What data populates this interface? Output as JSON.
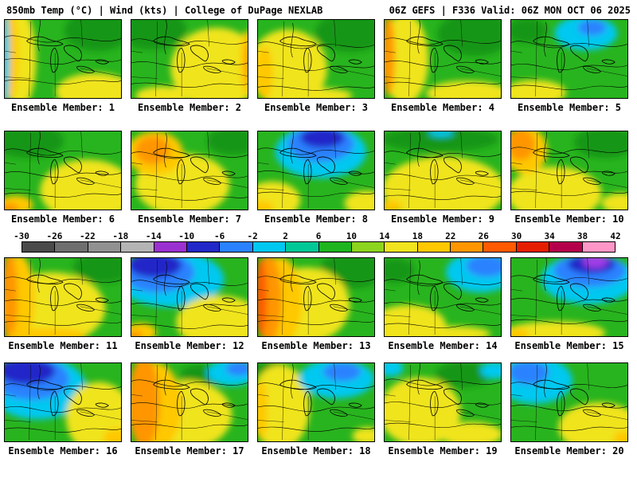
{
  "header": {
    "left": "850mb Temp (°C) | Wind (kts) | College of DuPage NEXLAB",
    "right": "06Z GEFS | F336 Valid: 06Z MON OCT 06 2025"
  },
  "colorbar": {
    "ticks": [
      "-30",
      "-26",
      "-22",
      "-18",
      "-14",
      "-10",
      "-6",
      "-2",
      "2",
      "6",
      "10",
      "14",
      "18",
      "22",
      "26",
      "30",
      "34",
      "38",
      "42"
    ],
    "segment_colors": [
      "#4a4a4a",
      "#6e6e6e",
      "#919191",
      "#b4b4b4",
      "#9b30d0",
      "#2228c8",
      "#2a82ff",
      "#00c8f0",
      "#00c896",
      "#1eb41e",
      "#8cd41e",
      "#f0e41e",
      "#ffc800",
      "#ff9600",
      "#ff5a00",
      "#e61e00",
      "#b4004b",
      "#ff96c8"
    ]
  },
  "palette": {
    "green": "#28b41e",
    "dark_green": "#129612",
    "light_green": "#8cd41e",
    "yellow": "#f0e41e",
    "gold": "#ffc800",
    "orange": "#ff9600",
    "deep_orange": "#ff5a00",
    "red": "#e61e00",
    "cyan": "#00c8f0",
    "teal": "#00c896",
    "blue": "#2a82ff",
    "dark_blue": "#2228c8",
    "purple": "#a03ce6",
    "pink": "#ff96c8"
  },
  "field_base": "green",
  "members": [
    {
      "label": "Ensemble Member: 1",
      "blobs": [
        [
          118,
          14,
          42,
          26,
          "dark_green"
        ],
        [
          115,
          92,
          50,
          24,
          "yellow"
        ],
        [
          20,
          50,
          20,
          62,
          "yellow"
        ],
        [
          8,
          45,
          9,
          58,
          "gold"
        ],
        [
          1,
          50,
          5,
          60,
          "cyan"
        ]
      ]
    },
    {
      "label": "Ensemble Member: 2",
      "blobs": [
        [
          25,
          12,
          45,
          26,
          "dark_green"
        ],
        [
          108,
          62,
          58,
          52,
          "yellow"
        ],
        [
          147,
          55,
          8,
          42,
          "gold"
        ],
        [
          149,
          55,
          4,
          28,
          "orange"
        ],
        [
          40,
          97,
          35,
          12,
          "yellow"
        ]
      ]
    },
    {
      "label": "Ensemble Member: 3",
      "blobs": [
        [
          118,
          16,
          45,
          25,
          "dark_green"
        ],
        [
          38,
          62,
          50,
          50,
          "yellow"
        ],
        [
          8,
          68,
          11,
          34,
          "gold"
        ],
        [
          75,
          97,
          45,
          10,
          "yellow"
        ]
      ]
    },
    {
      "label": "Ensemble Member: 4",
      "blobs": [
        [
          115,
          18,
          48,
          28,
          "dark_green"
        ],
        [
          26,
          50,
          30,
          58,
          "yellow"
        ],
        [
          5,
          45,
          8,
          52,
          "orange"
        ],
        [
          105,
          94,
          52,
          16,
          "yellow"
        ]
      ]
    },
    {
      "label": "Ensemble Member: 5",
      "blobs": [
        [
          20,
          14,
          26,
          16,
          "dark_green"
        ],
        [
          30,
          93,
          40,
          16,
          "yellow"
        ],
        [
          95,
          17,
          40,
          22,
          "cyan"
        ],
        [
          103,
          10,
          18,
          10,
          "blue"
        ]
      ]
    },
    {
      "label": "Ensemble Member: 6",
      "blobs": [
        [
          30,
          12,
          45,
          22,
          "dark_green"
        ],
        [
          105,
          76,
          60,
          40,
          "yellow"
        ],
        [
          14,
          94,
          22,
          12,
          "gold"
        ],
        [
          6,
          99,
          12,
          7,
          "orange"
        ]
      ]
    },
    {
      "label": "Ensemble Member: 7",
      "blobs": [
        [
          130,
          12,
          34,
          18,
          "dark_green"
        ],
        [
          65,
          68,
          60,
          40,
          "yellow"
        ],
        [
          30,
          28,
          36,
          28,
          "gold"
        ],
        [
          27,
          24,
          22,
          18,
          "orange"
        ]
      ]
    },
    {
      "label": "Ensemble Member: 8",
      "blobs": [
        [
          80,
          26,
          58,
          34,
          "cyan"
        ],
        [
          80,
          16,
          42,
          23,
          "blue"
        ],
        [
          82,
          8,
          28,
          13,
          "dark_blue"
        ],
        [
          18,
          88,
          36,
          24,
          "yellow"
        ],
        [
          138,
          92,
          28,
          16,
          "yellow"
        ],
        [
          6,
          98,
          14,
          9,
          "gold"
        ]
      ]
    },
    {
      "label": "Ensemble Member: 9",
      "blobs": [
        [
          70,
          10,
          75,
          16,
          "dark_green"
        ],
        [
          75,
          74,
          78,
          42,
          "yellow"
        ],
        [
          72,
          2,
          16,
          5,
          "cyan"
        ],
        [
          8,
          96,
          14,
          8,
          "gold"
        ]
      ]
    },
    {
      "label": "Ensemble Member: 10",
      "blobs": [
        [
          120,
          14,
          40,
          20,
          "dark_green"
        ],
        [
          55,
          80,
          60,
          35,
          "yellow"
        ],
        [
          18,
          24,
          28,
          30,
          "gold"
        ],
        [
          12,
          17,
          18,
          20,
          "orange"
        ],
        [
          140,
          92,
          25,
          13,
          "yellow"
        ]
      ]
    },
    {
      "label": "Ensemble Member: 11",
      "blobs": [
        [
          125,
          12,
          38,
          20,
          "dark_green"
        ],
        [
          60,
          64,
          68,
          46,
          "yellow"
        ],
        [
          18,
          52,
          20,
          56,
          "gold"
        ],
        [
          6,
          50,
          10,
          58,
          "orange"
        ],
        [
          55,
          99,
          50,
          9,
          "gold"
        ]
      ]
    },
    {
      "label": "Ensemble Member: 12",
      "blobs": [
        [
          50,
          27,
          68,
          36,
          "cyan"
        ],
        [
          34,
          18,
          46,
          26,
          "blue"
        ],
        [
          30,
          9,
          34,
          16,
          "dark_blue"
        ],
        [
          112,
          82,
          55,
          34,
          "yellow"
        ],
        [
          12,
          95,
          20,
          12,
          "gold"
        ],
        [
          4,
          99,
          10,
          6,
          "orange"
        ]
      ]
    },
    {
      "label": "Ensemble Member: 13",
      "blobs": [
        [
          120,
          15,
          42,
          24,
          "dark_green"
        ],
        [
          62,
          60,
          55,
          48,
          "yellow"
        ],
        [
          28,
          55,
          28,
          56,
          "gold"
        ],
        [
          14,
          52,
          16,
          56,
          "orange"
        ],
        [
          4,
          50,
          7,
          50,
          "deep_orange"
        ]
      ]
    },
    {
      "label": "Ensemble Member: 14",
      "blobs": [
        [
          14,
          16,
          24,
          16,
          "dark_green"
        ],
        [
          122,
          18,
          44,
          26,
          "cyan"
        ],
        [
          130,
          10,
          26,
          14,
          "blue"
        ],
        [
          30,
          86,
          48,
          26,
          "yellow"
        ],
        [
          85,
          97,
          50,
          10,
          "yellow"
        ]
      ]
    },
    {
      "label": "Ensemble Member: 15",
      "blobs": [
        [
          98,
          27,
          60,
          32,
          "cyan"
        ],
        [
          100,
          16,
          46,
          21,
          "blue"
        ],
        [
          102,
          8,
          30,
          12,
          "dark_blue"
        ],
        [
          107,
          4,
          16,
          9,
          "purple"
        ],
        [
          55,
          96,
          65,
          15,
          "yellow"
        ],
        [
          8,
          98,
          14,
          8,
          "gold"
        ]
      ]
    },
    {
      "label": "Ensemble Member: 16",
      "blobs": [
        [
          42,
          32,
          62,
          40,
          "cyan"
        ],
        [
          34,
          20,
          48,
          27,
          "blue"
        ],
        [
          28,
          10,
          36,
          17,
          "dark_blue"
        ],
        [
          120,
          70,
          42,
          46,
          "yellow"
        ],
        [
          143,
          95,
          18,
          11,
          "gold"
        ]
      ]
    },
    {
      "label": "Ensemble Member: 17",
      "blobs": [
        [
          88,
          16,
          26,
          14,
          "dark_green"
        ],
        [
          70,
          66,
          58,
          44,
          "yellow"
        ],
        [
          30,
          55,
          34,
          56,
          "gold"
        ],
        [
          16,
          50,
          20,
          58,
          "orange"
        ],
        [
          128,
          12,
          32,
          17,
          "cyan"
        ],
        [
          137,
          7,
          17,
          9,
          "blue"
        ]
      ]
    },
    {
      "label": "Ensemble Member: 18",
      "blobs": [
        [
          16,
          8,
          22,
          12,
          "dark_green"
        ],
        [
          28,
          56,
          38,
          54,
          "yellow"
        ],
        [
          4,
          60,
          8,
          38,
          "gold"
        ],
        [
          100,
          20,
          48,
          25,
          "cyan"
        ],
        [
          107,
          11,
          24,
          12,
          "blue"
        ],
        [
          140,
          93,
          20,
          11,
          "yellow"
        ]
      ]
    },
    {
      "label": "Ensemble Member: 19",
      "blobs": [
        [
          100,
          14,
          35,
          17,
          "dark_green"
        ],
        [
          45,
          62,
          52,
          44,
          "yellow"
        ],
        [
          8,
          6,
          16,
          11,
          "cyan"
        ],
        [
          140,
          9,
          18,
          11,
          "cyan"
        ],
        [
          110,
          91,
          40,
          16,
          "yellow"
        ]
      ]
    },
    {
      "label": "Ensemble Member: 20",
      "blobs": [
        [
          30,
          22,
          48,
          30,
          "cyan"
        ],
        [
          22,
          12,
          26,
          15,
          "blue"
        ],
        [
          112,
          82,
          52,
          32,
          "yellow"
        ],
        [
          145,
          96,
          15,
          9,
          "gold"
        ]
      ]
    }
  ]
}
